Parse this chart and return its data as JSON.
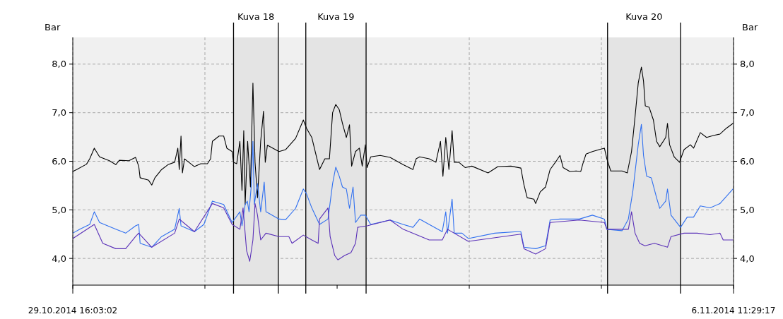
{
  "chart_data": {
    "type": "line",
    "ylabel": "Bar",
    "y2label": "Bar",
    "grid": true,
    "line_style": "solid",
    "xlim": [
      "2014-10-29T16:03",
      "2014-11-06T11:29"
    ],
    "xticks": [
      {
        "value": "2014-10-29T16:03",
        "label": "29.10.2014 16:03:02"
      },
      {
        "value": "2014-10-31T05:32",
        "label": null
      },
      {
        "value": "2014-11-01T19:02",
        "label": null
      },
      {
        "value": "2014-11-03T08:31",
        "label": null
      },
      {
        "value": "2014-11-04T22:00",
        "label": null
      },
      {
        "value": "2014-11-06T11:29",
        "label": "6.11.2014 11:29:17"
      }
    ],
    "ylim": [
      3.45,
      8.55
    ],
    "yticks": [
      {
        "value": 4,
        "label": "4,0"
      },
      {
        "value": 5,
        "label": "5,0"
      },
      {
        "value": 6,
        "label": "6,0"
      },
      {
        "value": 7,
        "label": "7,0"
      },
      {
        "value": 8,
        "label": "8,0"
      }
    ],
    "y2lim": [
      3.45,
      8.55
    ],
    "y2ticks": [
      {
        "value": 4,
        "label": "4,0"
      },
      {
        "value": 5,
        "label": "5,0"
      },
      {
        "value": 6,
        "label": "6,0"
      },
      {
        "value": 7,
        "label": "7,0"
      },
      {
        "value": 8,
        "label": "8,0"
      }
    ],
    "bands": [
      {
        "axis": "x",
        "from": "2014-10-31T13:39",
        "to": "2014-11-01T02:21",
        "label": "Kuva 18",
        "color": "#e4e4e4"
      },
      {
        "axis": "x",
        "from": "2014-11-01T10:09",
        "to": "2014-11-02T03:15",
        "label": "Kuva 19",
        "color": "#e4e4e4"
      },
      {
        "axis": "x",
        "from": "2014-11-04T23:45",
        "to": "2014-11-05T20:27",
        "label": "Kuva 20",
        "color": "#e4e4e4"
      }
    ],
    "series": [
      {
        "color": "#000000",
        "x": [
          "2014-10-29T16:03",
          "2014-10-29T17:09",
          "2014-10-29T19:57",
          "2014-10-29T20:51",
          "2014-10-29T22:09",
          "2014-10-29T23:39",
          "2014-10-30T02:27",
          "2014-10-30T04:15",
          "2014-10-30T05:15",
          "2014-10-30T07:57",
          "2014-10-30T09:51",
          "2014-10-30T10:45",
          "2014-10-30T11:09",
          "2014-10-30T13:33",
          "2014-10-30T14:27",
          "2014-10-30T15:21",
          "2014-10-30T17:15",
          "2014-10-30T19:03",
          "2014-10-30T20:57",
          "2014-10-30T21:51",
          "2014-10-30T22:15",
          "2014-10-30T22:45",
          "2014-10-30T23:09",
          "2014-10-30T23:45",
          "2014-10-31T02:33",
          "2014-10-31T04:21",
          "2014-10-31T06:15",
          "2014-10-31T07:09",
          "2014-10-31T07:39",
          "2014-10-31T09:33",
          "2014-10-31T10:51",
          "2014-10-31T11:45",
          "2014-10-31T13:15",
          "2014-10-31T13:39",
          "2014-10-31T14:33",
          "2014-10-31T15:27",
          "2014-10-31T16:03",
          "2014-10-31T16:33",
          "2014-10-31T16:57",
          "2014-10-31T17:39",
          "2014-10-31T18:27",
          "2014-10-31T19:09",
          "2014-10-31T19:45",
          "2014-10-31T20:27",
          "2014-10-31T21:21",
          "2014-10-31T22:09",
          "2014-10-31T22:39",
          "2014-10-31T23:15",
          "2014-11-01T02:33",
          "2014-11-01T04:27",
          "2014-11-01T07:15",
          "2014-11-01T09:27",
          "2014-11-01T10:21",
          "2014-11-01T11:51",
          "2014-11-01T14:03",
          "2014-11-01T15:33",
          "2014-11-01T16:51",
          "2014-11-01T17:45",
          "2014-11-01T18:39",
          "2014-11-01T19:39",
          "2014-11-01T20:33",
          "2014-11-01T21:39",
          "2014-11-01T22:33",
          "2014-11-01T23:09",
          "2014-11-02T00:15",
          "2014-11-02T01:21",
          "2014-11-02T02:09",
          "2014-11-02T03:03",
          "2014-11-02T03:33",
          "2014-11-02T04:33",
          "2014-11-02T07:15",
          "2014-11-02T10:03",
          "2014-11-02T13:45",
          "2014-11-02T16:33",
          "2014-11-02T17:27",
          "2014-11-02T18:27",
          "2014-11-02T21:09",
          "2014-11-02T23:03",
          "2014-11-03T00:21",
          "2014-11-03T01:03",
          "2014-11-03T01:51",
          "2014-11-03T02:45",
          "2014-11-03T03:39",
          "2014-11-03T04:15",
          "2014-11-03T05:33",
          "2014-11-03T07:21",
          "2014-11-03T09:15",
          "2014-11-03T13:51",
          "2014-11-03T16:39",
          "2014-11-03T20:21",
          "2014-11-03T23:09",
          "2014-11-04T00:03",
          "2014-11-04T00:57",
          "2014-11-04T02:51",
          "2014-11-04T03:21",
          "2014-11-04T04:39",
          "2014-11-04T06:09",
          "2014-11-04T07:27",
          "2014-11-04T09:15",
          "2014-11-04T10:15",
          "2014-11-04T11:09",
          "2014-11-04T13:03",
          "2014-11-04T14:51",
          "2014-11-04T16:09",
          "2014-11-04T16:45",
          "2014-11-04T17:39",
          "2014-11-04T19:27",
          "2014-11-04T21:21",
          "2014-11-04T22:51",
          "2014-11-04T23:33",
          "2014-11-05T00:39",
          "2014-11-05T03:51",
          "2014-11-05T05:21",
          "2014-11-05T06:33",
          "2014-11-05T07:33",
          "2014-11-05T08:27",
          "2014-11-05T09:21",
          "2014-11-05T09:57",
          "2014-11-05T10:27",
          "2014-11-05T11:33",
          "2014-11-05T12:45",
          "2014-11-05T13:39",
          "2014-11-05T14:33",
          "2014-11-05T16:15",
          "2014-11-05T16:45",
          "2014-11-05T17:21",
          "2014-11-05T18:39",
          "2014-11-05T20:09",
          "2014-11-05T21:27",
          "2014-11-05T23:15",
          "2014-11-06T00:09",
          "2014-11-06T02:03",
          "2014-11-06T03:51",
          "2014-11-06T05:45",
          "2014-11-06T07:39",
          "2014-11-06T09:27",
          "2014-11-06T11:21"
        ],
        "values": [
          5.79,
          5.83,
          5.94,
          6.05,
          6.27,
          6.09,
          6.01,
          5.93,
          6.02,
          6.01,
          6.08,
          5.9,
          5.66,
          5.61,
          5.51,
          5.66,
          5.83,
          5.93,
          5.98,
          6.27,
          5.83,
          6.52,
          5.76,
          6.05,
          5.89,
          5.95,
          5.95,
          6.05,
          6.41,
          6.52,
          6.52,
          6.27,
          6.2,
          5.98,
          5.95,
          6.41,
          5.4,
          6.63,
          5.11,
          6.41,
          5.47,
          7.61,
          5.98,
          5.25,
          6.41,
          7.03,
          5.98,
          6.33,
          6.2,
          6.24,
          6.47,
          6.85,
          6.68,
          6.49,
          5.83,
          6.05,
          6.05,
          7.0,
          7.17,
          7.06,
          6.78,
          6.49,
          6.75,
          5.9,
          6.2,
          6.27,
          5.9,
          6.34,
          5.87,
          6.09,
          6.12,
          6.08,
          5.93,
          5.83,
          6.05,
          6.09,
          6.05,
          5.98,
          6.41,
          5.69,
          6.49,
          5.83,
          6.63,
          5.98,
          5.98,
          5.87,
          5.9,
          5.76,
          5.89,
          5.9,
          5.86,
          5.51,
          5.25,
          5.22,
          5.13,
          5.37,
          5.47,
          5.83,
          6.01,
          6.12,
          5.87,
          5.79,
          5.8,
          5.79,
          5.95,
          6.15,
          6.2,
          6.24,
          6.27,
          6.05,
          5.8,
          5.8,
          5.76,
          6.2,
          6.92,
          7.61,
          7.94,
          7.65,
          7.14,
          7.11,
          6.85,
          6.41,
          6.3,
          6.49,
          6.78,
          6.34,
          6.09,
          5.98,
          6.24,
          6.34,
          6.27,
          6.59,
          6.49,
          6.53,
          6.56,
          6.68,
          6.78
        ]
      },
      {
        "color": "#3070f0",
        "x": [
          "2014-10-29T16:03",
          "2014-10-29T18:03",
          "2014-10-29T20:51",
          "2014-10-29T22:09",
          "2014-10-29T23:39",
          "2014-10-30T04:15",
          "2014-10-30T07:03",
          "2014-10-30T09:51",
          "2014-10-30T10:45",
          "2014-10-30T11:09",
          "2014-10-30T14:27",
          "2014-10-30T17:15",
          "2014-10-30T20:57",
          "2014-10-30T22:15",
          "2014-10-30T22:45",
          "2014-10-31T02:33",
          "2014-10-31T05:15",
          "2014-10-31T07:39",
          "2014-10-31T10:51",
          "2014-10-31T13:15",
          "2014-10-31T15:27",
          "2014-10-31T16:03",
          "2014-10-31T16:57",
          "2014-10-31T17:33",
          "2014-10-31T18:03",
          "2014-10-31T18:39",
          "2014-10-31T19:09",
          "2014-10-31T19:33",
          "2014-10-31T20:27",
          "2014-10-31T21:21",
          "2014-10-31T22:21",
          "2014-10-31T22:51",
          "2014-10-31T23:51",
          "2014-11-01T02:33",
          "2014-11-01T04:27",
          "2014-11-01T07:15",
          "2014-11-01T09:27",
          "2014-11-01T10:21",
          "2014-11-01T11:51",
          "2014-11-01T14:03",
          "2014-11-01T16:27",
          "2014-11-01T17:45",
          "2014-11-01T18:39",
          "2014-11-01T19:39",
          "2014-11-01T20:33",
          "2014-11-01T21:39",
          "2014-11-01T22:33",
          "2014-11-01T23:33",
          "2014-11-02T00:15",
          "2014-11-02T01:45",
          "2014-11-02T03:03",
          "2014-11-02T04:33",
          "2014-11-02T10:03",
          "2014-11-02T13:45",
          "2014-11-02T16:33",
          "2014-11-02T18:27",
          "2014-11-02T21:09",
          "2014-11-03T00:51",
          "2014-11-03T01:51",
          "2014-11-03T02:21",
          "2014-11-03T03:39",
          "2014-11-03T04:15",
          "2014-11-03T06:27",
          "2014-11-03T08:15",
          "2014-11-03T15:45",
          "2014-11-03T22:09",
          "2014-11-03T23:09",
          "2014-11-04T00:03",
          "2014-11-04T03:21",
          "2014-11-04T06:09",
          "2014-11-04T07:27",
          "2014-11-04T10:15",
          "2014-11-04T15:45",
          "2014-11-04T19:27",
          "2014-11-04T22:51",
          "2014-11-04T23:33",
          "2014-11-05T03:51",
          "2014-11-05T05:39",
          "2014-11-05T06:57",
          "2014-11-05T08:27",
          "2014-11-05T09:21",
          "2014-11-05T09:57",
          "2014-11-05T10:51",
          "2014-11-05T12:09",
          "2014-11-05T13:39",
          "2014-11-05T14:33",
          "2014-11-05T16:15",
          "2014-11-05T16:45",
          "2014-11-05T17:45",
          "2014-11-05T20:27",
          "2014-11-05T22:21",
          "2014-11-06T00:09",
          "2014-11-06T02:03",
          "2014-11-06T04:51",
          "2014-11-06T07:39",
          "2014-11-06T11:21"
        ],
        "values": [
          4.52,
          4.6,
          4.7,
          4.96,
          4.74,
          4.6,
          4.52,
          4.67,
          4.7,
          4.31,
          4.23,
          4.45,
          4.6,
          5.03,
          4.67,
          4.55,
          4.7,
          5.18,
          5.11,
          4.74,
          4.96,
          4.67,
          5.11,
          5.18,
          4.96,
          5.47,
          6.41,
          5.11,
          5.54,
          4.96,
          5.57,
          4.96,
          4.92,
          4.81,
          4.8,
          5.03,
          5.43,
          5.33,
          5.04,
          4.7,
          4.81,
          5.54,
          5.88,
          5.69,
          5.47,
          5.43,
          5.03,
          5.47,
          4.74,
          4.89,
          4.89,
          4.7,
          4.79,
          4.7,
          4.64,
          4.81,
          4.7,
          4.55,
          4.96,
          4.52,
          5.22,
          4.52,
          4.52,
          4.41,
          4.52,
          4.55,
          4.55,
          4.23,
          4.2,
          4.26,
          4.79,
          4.81,
          4.81,
          4.89,
          4.81,
          4.6,
          4.57,
          4.81,
          5.4,
          6.34,
          6.76,
          6.12,
          5.69,
          5.66,
          5.25,
          5.03,
          5.18,
          5.43,
          4.89,
          4.64,
          4.85,
          4.85,
          5.08,
          5.04,
          5.13,
          5.43
        ]
      },
      {
        "color": "#5a30b8",
        "x": [
          "2014-10-29T16:03",
          "2014-10-29T22:09",
          "2014-10-30T00:33",
          "2014-10-30T04:15",
          "2014-10-30T07:03",
          "2014-10-30T09:51",
          "2014-10-30T10:45",
          "2014-10-30T14:27",
          "2014-10-30T20:57",
          "2014-10-30T22:15",
          "2014-10-31T02:33",
          "2014-10-31T07:39",
          "2014-10-31T10:51",
          "2014-10-31T13:15",
          "2014-10-31T15:27",
          "2014-10-31T16:21",
          "2014-10-31T17:21",
          "2014-10-31T18:15",
          "2014-10-31T19:09",
          "2014-10-31T19:45",
          "2014-10-31T20:27",
          "2014-10-31T21:21",
          "2014-10-31T22:51",
          "2014-11-01T02:33",
          "2014-11-01T05:21",
          "2014-11-01T06:15",
          "2014-11-01T09:27",
          "2014-11-01T11:51",
          "2014-11-01T13:39",
          "2014-11-01T14:03",
          "2014-11-01T16:27",
          "2014-11-01T17:03",
          "2014-11-01T18:21",
          "2014-11-01T19:15",
          "2014-11-01T21:09",
          "2014-11-01T22:57",
          "2014-11-02T00:15",
          "2014-11-02T00:51",
          "2014-11-02T03:33",
          "2014-11-02T10:03",
          "2014-11-02T13:45",
          "2014-11-02T21:09",
          "2014-11-03T00:51",
          "2014-11-03T02:21",
          "2014-11-03T08:15",
          "2014-11-03T23:09",
          "2014-11-04T00:03",
          "2014-11-04T03:21",
          "2014-11-04T06:09",
          "2014-11-04T07:27",
          "2014-11-04T15:45",
          "2014-11-04T22:51",
          "2014-11-04T23:33",
          "2014-11-05T05:39",
          "2014-11-05T06:33",
          "2014-11-05T07:33",
          "2014-11-05T08:51",
          "2014-11-05T10:21",
          "2014-11-05T13:03",
          "2014-11-05T16:45",
          "2014-11-05T17:45",
          "2014-11-05T21:27",
          "2014-11-06T01:09",
          "2014-11-06T04:51",
          "2014-11-06T07:39",
          "2014-11-06T08:33",
          "2014-11-06T11:21"
        ],
        "values": [
          4.41,
          4.7,
          4.31,
          4.2,
          4.2,
          4.45,
          4.52,
          4.23,
          4.52,
          4.81,
          4.55,
          5.13,
          5.04,
          4.7,
          4.6,
          5.04,
          4.16,
          3.94,
          4.38,
          5.13,
          4.89,
          4.38,
          4.52,
          4.45,
          4.45,
          4.31,
          4.48,
          4.38,
          4.31,
          4.81,
          5.04,
          4.45,
          4.06,
          3.97,
          4.06,
          4.12,
          4.31,
          4.64,
          4.67,
          4.79,
          4.6,
          4.38,
          4.38,
          4.6,
          4.35,
          4.5,
          4.2,
          4.09,
          4.2,
          4.74,
          4.79,
          4.74,
          4.6,
          4.6,
          4.96,
          4.52,
          4.31,
          4.26,
          4.31,
          4.23,
          4.45,
          4.52,
          4.52,
          4.49,
          4.52,
          4.38,
          4.38
        ]
      }
    ]
  }
}
